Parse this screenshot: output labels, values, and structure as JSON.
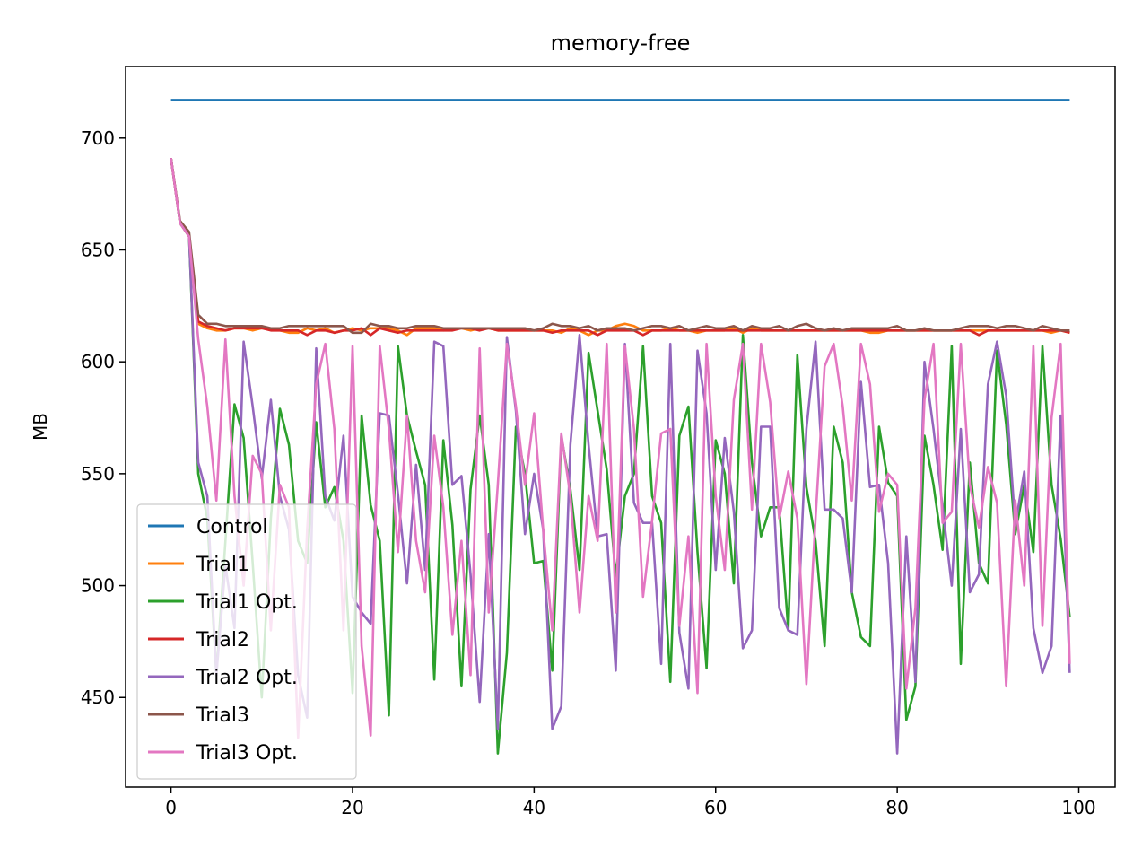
{
  "chart_data": {
    "type": "line",
    "title": "memory-free",
    "xlabel": "",
    "ylabel": "MB",
    "xlim": [
      -5,
      104
    ],
    "ylim": [
      410,
      732
    ],
    "xticks": [
      0,
      20,
      40,
      60,
      80,
      100
    ],
    "yticks": [
      450,
      500,
      550,
      600,
      650,
      700
    ],
    "legend_position": "lower-left",
    "grid": false,
    "series": [
      {
        "name": "Control",
        "color": "#1f77b4",
        "values": [
          717,
          717,
          717,
          717,
          717,
          717,
          717,
          717,
          717,
          717,
          717,
          717,
          717,
          717,
          717,
          717,
          717,
          717,
          717,
          717,
          717,
          717,
          717,
          717,
          717,
          717,
          717,
          717,
          717,
          717,
          717,
          717,
          717,
          717,
          717,
          717,
          717,
          717,
          717,
          717,
          717,
          717,
          717,
          717,
          717,
          717,
          717,
          717,
          717,
          717,
          717,
          717,
          717,
          717,
          717,
          717,
          717,
          717,
          717,
          717,
          717,
          717,
          717,
          717,
          717,
          717,
          717,
          717,
          717,
          717,
          717,
          717,
          717,
          717,
          717,
          717,
          717,
          717,
          717,
          717,
          717,
          717,
          717,
          717,
          717,
          717,
          717,
          717,
          717,
          717,
          717,
          717,
          717,
          717,
          717,
          717,
          717,
          717,
          717,
          717
        ]
      },
      {
        "name": "Trial1",
        "color": "#ff7f0e",
        "values": [
          691,
          662,
          656,
          617,
          615,
          614,
          614,
          615,
          615,
          614,
          615,
          615,
          614,
          613,
          613,
          615,
          614,
          615,
          613,
          614,
          615,
          614,
          615,
          615,
          615,
          614,
          612,
          615,
          615,
          615,
          614,
          615,
          615,
          614,
          615,
          615,
          614,
          614,
          614,
          614,
          614,
          614,
          614,
          613,
          615,
          614,
          612,
          614,
          614,
          616,
          617,
          616,
          614,
          614,
          614,
          615,
          614,
          614,
          613,
          614,
          614,
          614,
          615,
          613,
          615,
          614,
          614,
          614,
          614,
          614,
          614,
          614,
          614,
          614,
          614,
          614,
          614,
          613,
          613,
          614,
          614,
          614,
          614,
          614,
          614,
          614,
          614,
          614,
          614,
          614,
          614,
          614,
          614,
          614,
          614,
          614,
          614,
          613,
          614,
          613
        ]
      },
      {
        "name": "Trial1 Opt.",
        "color": "#2ca02c",
        "values": [
          691,
          662,
          656,
          550,
          530,
          460,
          520,
          581,
          566,
          510,
          450,
          530,
          579,
          563,
          520,
          510,
          573,
          535,
          544,
          520,
          452,
          576,
          536,
          520,
          442,
          607,
          576,
          560,
          545,
          458,
          565,
          527,
          455,
          543,
          576,
          545,
          425,
          470,
          571,
          550,
          510,
          511,
          462,
          567,
          543,
          507,
          604,
          578,
          552,
          504,
          540,
          550,
          607,
          540,
          528,
          457,
          567,
          580,
          515,
          463,
          565,
          550,
          501,
          612,
          555,
          522,
          535,
          535,
          480,
          603,
          544,
          520,
          473,
          571,
          555,
          497,
          477,
          473,
          571,
          546,
          540,
          440,
          455,
          567,
          545,
          516,
          607,
          465,
          555,
          510,
          501,
          605,
          572,
          523,
          545,
          515,
          607,
          545,
          521,
          486
        ]
      },
      {
        "name": "Trial2",
        "color": "#d62728",
        "values": [
          691,
          662,
          656,
          618,
          616,
          615,
          614,
          615,
          615,
          615,
          615,
          614,
          614,
          614,
          614,
          612,
          614,
          614,
          613,
          614,
          614,
          615,
          612,
          615,
          614,
          613,
          614,
          614,
          614,
          614,
          614,
          614,
          615,
          615,
          614,
          615,
          614,
          614,
          614,
          614,
          614,
          614,
          613,
          614,
          614,
          614,
          614,
          612,
          614,
          614,
          614,
          614,
          612,
          614,
          614,
          614,
          614,
          614,
          614,
          614,
          614,
          614,
          614,
          614,
          614,
          614,
          614,
          614,
          614,
          614,
          614,
          614,
          614,
          614,
          614,
          614,
          614,
          614,
          614,
          614,
          614,
          614,
          614,
          614,
          614,
          614,
          614,
          614,
          614,
          612,
          614,
          614,
          614,
          614,
          614,
          614,
          614,
          614,
          614,
          613
        ]
      },
      {
        "name": "Trial2 Opt.",
        "color": "#9467bd",
        "values": [
          691,
          662,
          656,
          555,
          540,
          460,
          509,
          481,
          609,
          580,
          548,
          583,
          540,
          525,
          460,
          441,
          606,
          540,
          529,
          567,
          495,
          488,
          483,
          577,
          576,
          541,
          501,
          554,
          507,
          609,
          607,
          545,
          549,
          505,
          448,
          523,
          436,
          611,
          578,
          523,
          550,
          525,
          436,
          446,
          563,
          612,
          563,
          522,
          523,
          462,
          608,
          537,
          528,
          528,
          465,
          608,
          479,
          454,
          605,
          577,
          507,
          566,
          533,
          472,
          480,
          571,
          571,
          490,
          480,
          478,
          570,
          609,
          534,
          534,
          530,
          497,
          591,
          544,
          545,
          510,
          425,
          522,
          457,
          600,
          570,
          535,
          500,
          570,
          497,
          505,
          590,
          609,
          585,
          527,
          551,
          481,
          461,
          473,
          576,
          461
        ]
      },
      {
        "name": "Trial3",
        "color": "#8c564b",
        "values": [
          691,
          663,
          658,
          621,
          617,
          617,
          616,
          616,
          616,
          616,
          616,
          615,
          615,
          616,
          616,
          616,
          616,
          616,
          616,
          616,
          613,
          613,
          617,
          616,
          616,
          615,
          615,
          616,
          616,
          616,
          615,
          615,
          615,
          615,
          615,
          615,
          615,
          615,
          615,
          615,
          614,
          615,
          617,
          616,
          616,
          615,
          616,
          614,
          615,
          615,
          615,
          614,
          615,
          616,
          616,
          615,
          616,
          614,
          615,
          616,
          615,
          615,
          616,
          614,
          616,
          615,
          615,
          616,
          614,
          616,
          617,
          615,
          614,
          615,
          614,
          615,
          615,
          615,
          615,
          615,
          616,
          614,
          614,
          615,
          614,
          614,
          614,
          615,
          616,
          616,
          616,
          615,
          616,
          616,
          615,
          614,
          616,
          615,
          614,
          614
        ]
      },
      {
        "name": "Trial3 Opt.",
        "color": "#e377c2",
        "values": [
          691,
          662,
          656,
          610,
          580,
          538,
          610,
          540,
          500,
          558,
          550,
          480,
          545,
          535,
          432,
          525,
          590,
          608,
          570,
          480,
          607,
          473,
          433,
          607,
          570,
          515,
          576,
          520,
          497,
          567,
          535,
          478,
          520,
          460,
          606,
          488,
          545,
          608,
          580,
          545,
          577,
          525,
          480,
          568,
          540,
          488,
          540,
          520,
          608,
          488,
          607,
          570,
          495,
          529,
          568,
          570,
          482,
          522,
          452,
          608,
          540,
          507,
          583,
          608,
          534,
          608,
          582,
          530,
          551,
          530,
          456,
          530,
          598,
          608,
          580,
          538,
          608,
          590,
          533,
          550,
          545,
          454,
          490,
          583,
          608,
          528,
          533,
          608,
          545,
          526,
          553,
          537,
          455,
          538,
          500,
          607,
          482,
          575,
          608,
          465
        ]
      }
    ]
  }
}
